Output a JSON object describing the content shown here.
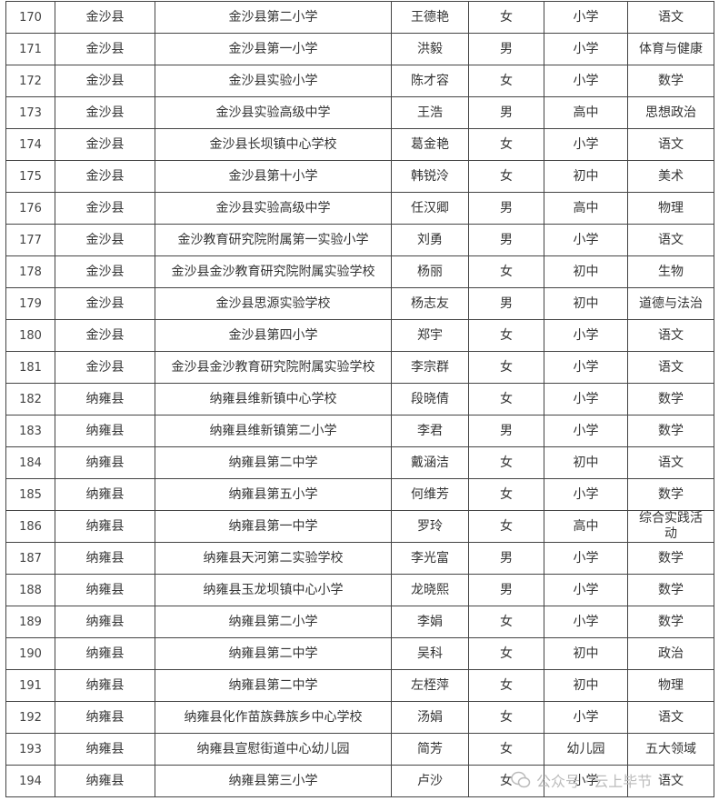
{
  "table": {
    "rows": [
      [
        "170",
        "金沙县",
        "金沙县第二小学",
        "王德艳",
        "女",
        "小学",
        "语文"
      ],
      [
        "171",
        "金沙县",
        "金沙县第一小学",
        "洪毅",
        "男",
        "小学",
        "体育与健康"
      ],
      [
        "172",
        "金沙县",
        "金沙县实验小学",
        "陈才容",
        "女",
        "小学",
        "数学"
      ],
      [
        "173",
        "金沙县",
        "金沙县实验高级中学",
        "王浩",
        "男",
        "高中",
        "思想政治"
      ],
      [
        "174",
        "金沙县",
        "金沙县长坝镇中心学校",
        "葛金艳",
        "女",
        "小学",
        "语文"
      ],
      [
        "175",
        "金沙县",
        "金沙县第十小学",
        "韩锐泠",
        "女",
        "初中",
        "美术"
      ],
      [
        "176",
        "金沙县",
        "金沙县实验高级中学",
        "任汉卿",
        "男",
        "高中",
        "物理"
      ],
      [
        "177",
        "金沙县",
        "金沙教育研究院附属第一实验小学",
        "刘勇",
        "男",
        "小学",
        "语文"
      ],
      [
        "178",
        "金沙县",
        "金沙县金沙教育研究院附属实验学校",
        "杨丽",
        "女",
        "初中",
        "生物"
      ],
      [
        "179",
        "金沙县",
        "金沙县思源实验学校",
        "杨志友",
        "男",
        "初中",
        "道德与法治"
      ],
      [
        "180",
        "金沙县",
        "金沙县第四小学",
        "郑宇",
        "女",
        "小学",
        "语文"
      ],
      [
        "181",
        "金沙县",
        "金沙县金沙教育研究院附属实验学校",
        "李宗群",
        "女",
        "小学",
        "语文"
      ],
      [
        "182",
        "纳雍县",
        "纳雍县维新镇中心学校",
        "段晓倩",
        "女",
        "小学",
        "数学"
      ],
      [
        "183",
        "纳雍县",
        "纳雍县维新镇第二小学",
        "李君",
        "男",
        "小学",
        "数学"
      ],
      [
        "184",
        "纳雍县",
        "纳雍县第二中学",
        "戴涵洁",
        "女",
        "初中",
        "语文"
      ],
      [
        "185",
        "纳雍县",
        "纳雍县第五小学",
        "何维芳",
        "女",
        "小学",
        "数学"
      ],
      [
        "186",
        "纳雍县",
        "纳雍县第一中学",
        "罗玲",
        "女",
        "高中",
        "综合实践活动"
      ],
      [
        "187",
        "纳雍县",
        "纳雍县天河第二实验学校",
        "李光富",
        "男",
        "小学",
        "数学"
      ],
      [
        "188",
        "纳雍县",
        "纳雍县玉龙坝镇中心小学",
        "龙晓熙",
        "男",
        "小学",
        "数学"
      ],
      [
        "189",
        "纳雍县",
        "纳雍县第二小学",
        "李娟",
        "女",
        "小学",
        "数学"
      ],
      [
        "190",
        "纳雍县",
        "纳雍县第二中学",
        "吴科",
        "女",
        "初中",
        "政治"
      ],
      [
        "191",
        "纳雍县",
        "纳雍县第二中学",
        "左桎萍",
        "女",
        "初中",
        "物理"
      ],
      [
        "192",
        "纳雍县",
        "纳雍县化作苗族彝族乡中心学校",
        "汤娟",
        "女",
        "小学",
        "语文"
      ],
      [
        "193",
        "纳雍县",
        "纳雍县宣慰街道中心幼儿园",
        "简芳",
        "女",
        "幼儿园",
        "五大领域"
      ],
      [
        "194",
        "纳雍县",
        "纳雍县第三小学",
        "卢沙",
        "女",
        "小学",
        "语文"
      ]
    ]
  },
  "watermark": "公众号 · 云上毕节"
}
